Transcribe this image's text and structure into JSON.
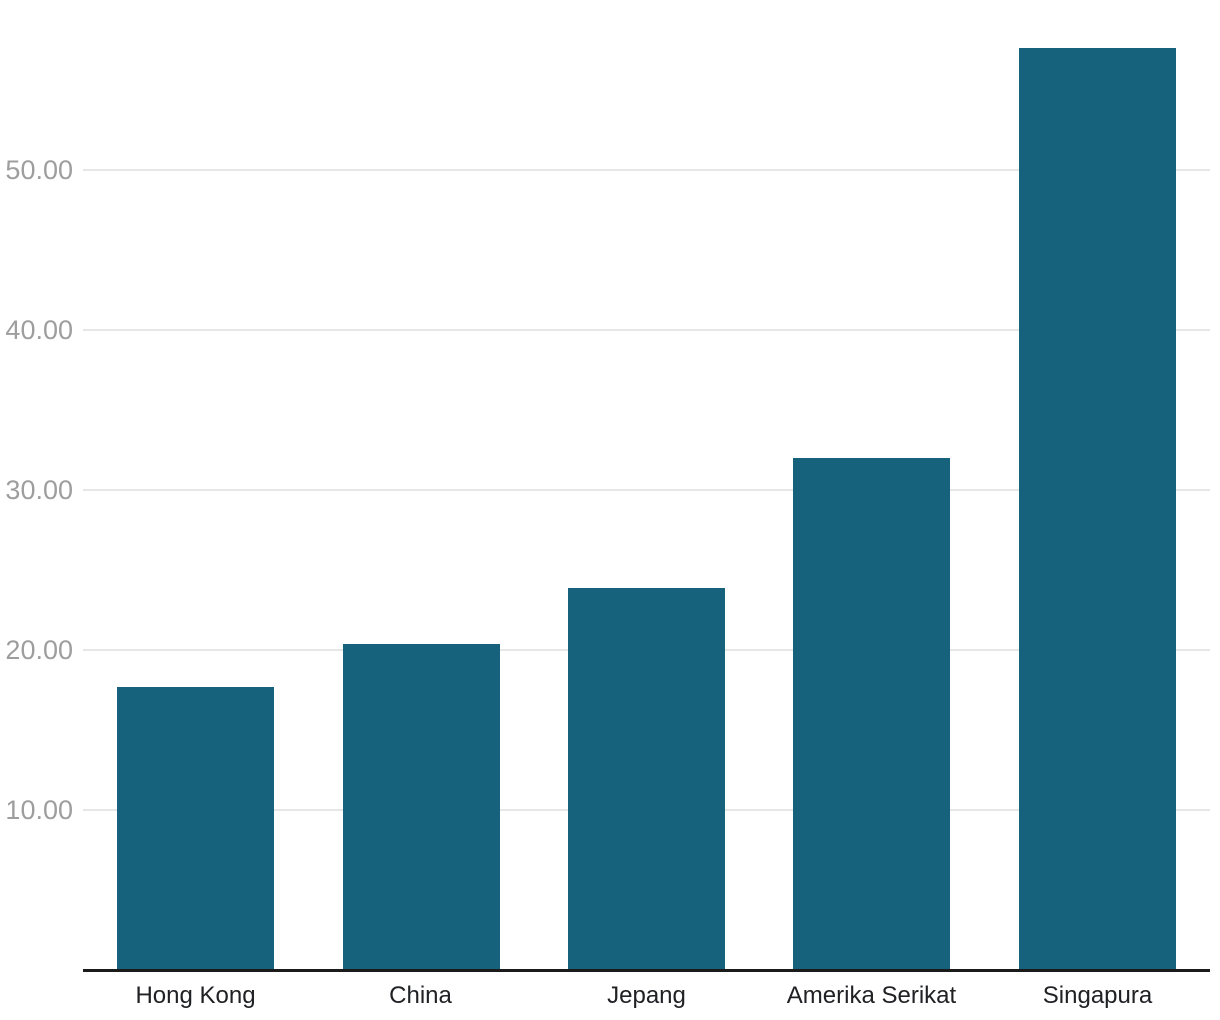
{
  "chart_data": {
    "type": "bar",
    "title": "",
    "xlabel": "",
    "ylabel": "",
    "categories": [
      "Hong Kong",
      "China",
      "Jepang",
      "Amerika Serikat",
      "Singapura"
    ],
    "values": [
      17.7,
      20.4,
      23.9,
      32.0,
      57.6
    ],
    "ylim": [
      0,
      60
    ],
    "yticks": [
      10,
      20,
      30,
      40,
      50
    ],
    "ytick_labels": [
      "10.00",
      "20.00",
      "30.00",
      "40.00",
      "50.00"
    ],
    "grid": true,
    "legend_position": "none",
    "colors": {
      "bar": "#16617b",
      "gridline": "#e6e6e6",
      "axis_line": "#1b1b1b",
      "y_tick_text": "#9e9e9e",
      "x_tick_text": "#202124",
      "background": "#ffffff"
    }
  }
}
